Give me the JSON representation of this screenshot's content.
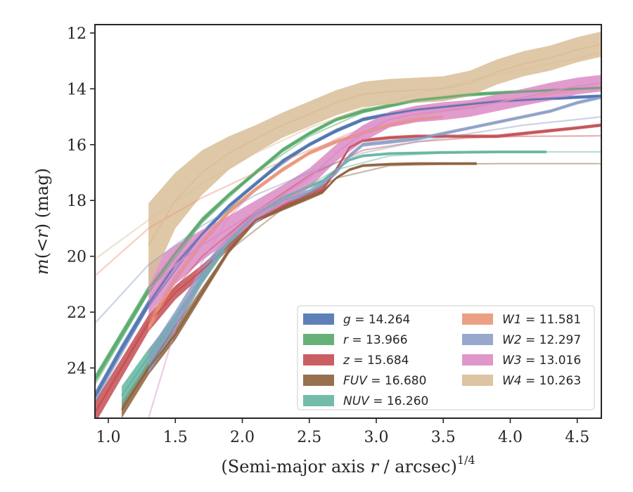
{
  "chart_data": {
    "type": "line",
    "title": "",
    "xlabel": "(Semi-major axis r / arcsec)",
    "xlabel_parts": {
      "pre": "(Semi-major axis ",
      "var": "r",
      "post": " / arcsec)",
      "sup": "1/4"
    },
    "ylabel": "m(< r) (mag)",
    "ylabel_parts": {
      "m": "m",
      "open": "(<",
      "r": "r",
      "close": ") (mag)"
    },
    "xlim": [
      0.9,
      4.68
    ],
    "ylim": [
      25.8,
      11.7
    ],
    "y_inverted": true,
    "xticks": [
      1.0,
      1.5,
      2.0,
      2.5,
      3.0,
      3.5,
      4.0,
      4.5
    ],
    "xtick_labels": [
      "1.0",
      "1.5",
      "2.0",
      "2.5",
      "3.0",
      "3.5",
      "4.0",
      "4.5"
    ],
    "yticks": [
      12,
      14,
      16,
      18,
      20,
      22,
      24
    ],
    "ytick_labels": [
      "12",
      "14",
      "16",
      "18",
      "20",
      "22",
      "24"
    ],
    "grid": false,
    "legend_position": "lower-right",
    "series": [
      {
        "name": "g",
        "label": "g = 14.264",
        "color": "#4c72b0",
        "x": [
          0.9,
          1.1,
          1.3,
          1.5,
          1.7,
          1.9,
          2.1,
          2.3,
          2.5,
          2.7,
          2.9,
          3.1,
          3.3,
          3.5,
          3.7,
          3.9,
          4.1,
          4.3,
          4.5,
          4.68
        ],
        "y": [
          25.0,
          23.3,
          21.7,
          20.3,
          19.2,
          18.2,
          17.4,
          16.6,
          16.0,
          15.5,
          15.1,
          14.9,
          14.75,
          14.65,
          14.55,
          14.45,
          14.4,
          14.35,
          14.3,
          14.264
        ],
        "band": [
          0.15,
          0.15,
          0.15,
          0.12,
          0.1,
          0.08,
          0.08,
          0.08,
          0.07,
          0.07,
          0.07,
          0.06,
          0.06,
          0.06,
          0.06,
          0.06,
          0.06,
          0.06,
          0.06,
          0.06
        ],
        "fit_x": [
          0.9,
          1.3,
          1.7,
          2.1,
          2.5,
          2.9,
          3.3,
          3.7,
          4.1,
          4.5,
          4.68
        ],
        "fit_y": [
          25.2,
          21.8,
          19.2,
          17.4,
          16.0,
          15.1,
          14.75,
          14.55,
          14.4,
          14.3,
          14.264
        ]
      },
      {
        "name": "r",
        "label": "r = 13.966",
        "color": "#55a868",
        "x": [
          0.9,
          1.1,
          1.3,
          1.5,
          1.7,
          1.9,
          2.1,
          2.3,
          2.5,
          2.7,
          2.9,
          3.1,
          3.3,
          3.5,
          3.7,
          3.9,
          4.1,
          4.3,
          4.5,
          4.68
        ],
        "y": [
          24.4,
          22.8,
          21.2,
          19.9,
          18.7,
          17.8,
          17.0,
          16.2,
          15.6,
          15.1,
          14.8,
          14.6,
          14.4,
          14.3,
          14.2,
          14.15,
          14.1,
          14.05,
          14.0,
          13.966
        ],
        "band": [
          0.15,
          0.15,
          0.15,
          0.12,
          0.1,
          0.08,
          0.08,
          0.08,
          0.07,
          0.07,
          0.07,
          0.06,
          0.06,
          0.06,
          0.06,
          0.06,
          0.06,
          0.06,
          0.06,
          0.06
        ],
        "fit_x": [
          0.9,
          1.3,
          1.7,
          2.1,
          2.5,
          2.9,
          3.3,
          3.7,
          4.1,
          4.5,
          4.68
        ],
        "fit_y": [
          24.6,
          21.3,
          18.8,
          17.0,
          15.7,
          14.85,
          14.45,
          14.25,
          14.1,
          14.0,
          13.966
        ]
      },
      {
        "name": "z",
        "label": "z = 15.684",
        "color": "#c44e52",
        "x": [
          0.9,
          1.1,
          1.3,
          1.5,
          1.7,
          1.9,
          2.1,
          2.3,
          2.5,
          2.6,
          2.7,
          2.8,
          2.9,
          3.1,
          3.3,
          3.5,
          3.7,
          3.9,
          4.1,
          4.3,
          4.5,
          4.68
        ],
        "y": [
          25.6,
          24.0,
          22.4,
          21.3,
          20.5,
          19.6,
          18.7,
          18.2,
          17.8,
          17.6,
          16.9,
          16.1,
          15.85,
          15.75,
          15.7,
          15.7,
          15.7,
          15.7,
          15.6,
          15.5,
          15.4,
          15.3
        ],
        "band": [
          0.4,
          0.35,
          0.3,
          0.25,
          0.2,
          0.15,
          0.12,
          0.1,
          0.1,
          0.1,
          0.08,
          0.07,
          0.06,
          0.06,
          0.06,
          0.06,
          0.06,
          0.06,
          0.06,
          0.06,
          0.06,
          0.06
        ],
        "fit_x": [
          0.9,
          1.3,
          1.7,
          2.1,
          2.5,
          2.9,
          3.3,
          3.7,
          4.1,
          4.5,
          4.68
        ],
        "fit_y": [
          25.6,
          22.3,
          20.0,
          18.4,
          17.1,
          16.2,
          15.9,
          15.75,
          15.7,
          15.69,
          15.684
        ]
      },
      {
        "name": "FUV",
        "label": "FUV = 16.680",
        "color": "#8c613c",
        "x": [
          1.1,
          1.3,
          1.5,
          1.7,
          1.9,
          2.1,
          2.3,
          2.5,
          2.6,
          2.7,
          2.8,
          2.9,
          3.1,
          3.3,
          3.5,
          3.75
        ],
        "y": [
          25.5,
          24.0,
          22.8,
          21.3,
          19.8,
          18.7,
          18.3,
          17.9,
          17.7,
          17.2,
          16.9,
          16.75,
          16.7,
          16.68,
          16.68,
          16.68
        ],
        "band": [
          0.3,
          0.25,
          0.2,
          0.15,
          0.1,
          0.08,
          0.07,
          0.07,
          0.06,
          0.05,
          0.05,
          0.05,
          0.05,
          0.05,
          0.05,
          0.05
        ],
        "fit_x": [
          1.1,
          1.5,
          1.9,
          2.3,
          2.7,
          3.1,
          3.5,
          3.9,
          4.3,
          4.68
        ],
        "fit_y": [
          25.5,
          22.5,
          19.8,
          18.3,
          17.2,
          16.75,
          16.7,
          16.68,
          16.68,
          16.68
        ]
      },
      {
        "name": "NUV",
        "label": "NUV = 16.260",
        "color": "#64b5a0",
        "x": [
          1.1,
          1.3,
          1.5,
          1.7,
          1.9,
          2.1,
          2.3,
          2.5,
          2.6,
          2.7,
          2.8,
          2.9,
          3.1,
          3.3,
          3.5,
          3.7,
          3.9,
          4.1,
          4.27
        ],
        "y": [
          25.0,
          23.6,
          22.3,
          20.8,
          19.5,
          18.5,
          17.9,
          17.5,
          17.3,
          16.9,
          16.55,
          16.4,
          16.32,
          16.3,
          16.28,
          16.27,
          16.26,
          16.26,
          16.26
        ],
        "band": [
          0.35,
          0.28,
          0.2,
          0.15,
          0.1,
          0.08,
          0.07,
          0.06,
          0.06,
          0.05,
          0.05,
          0.05,
          0.05,
          0.05,
          0.05,
          0.05,
          0.05,
          0.05,
          0.05
        ],
        "fit_x": [
          1.1,
          1.5,
          1.9,
          2.3,
          2.7,
          3.1,
          3.5,
          3.9,
          4.3,
          4.68
        ],
        "fit_y": [
          25.0,
          22.2,
          19.6,
          18.0,
          16.9,
          16.4,
          16.3,
          16.27,
          16.26,
          16.26
        ]
      },
      {
        "name": "W1",
        "label": "W1 = 11.581",
        "color": "#e99675",
        "x": [
          1.3,
          1.5,
          1.7,
          1.9,
          2.1,
          2.3,
          2.5,
          2.7,
          2.9,
          3.1,
          3.3,
          3.5
        ],
        "y": [
          22.5,
          20.8,
          19.5,
          18.4,
          17.6,
          16.9,
          16.3,
          15.9,
          15.6,
          15.3,
          15.1,
          15.0
        ],
        "band": [
          0.2,
          0.15,
          0.12,
          0.1,
          0.08,
          0.08,
          0.07,
          0.07,
          0.06,
          0.06,
          0.06,
          0.06
        ],
        "fit_x": [
          0.9,
          1.3,
          1.7,
          2.1,
          2.5,
          2.9,
          3.3,
          3.7,
          4.1,
          4.5,
          4.68
        ],
        "fit_y": [
          20.7,
          19.0,
          17.9,
          17.0,
          16.2,
          15.5,
          15.0,
          14.6,
          14.3,
          14.05,
          13.95
        ]
      },
      {
        "name": "W2",
        "label": "W2 = 12.297",
        "color": "#8c9fc6",
        "x": [
          1.3,
          1.5,
          1.7,
          1.9,
          2.1,
          2.3,
          2.5,
          2.6,
          2.7,
          2.8,
          2.9,
          3.1,
          3.3,
          3.5,
          3.7,
          3.9,
          4.1,
          4.3,
          4.5,
          4.68
        ],
        "y": [
          23.8,
          22.3,
          20.7,
          19.4,
          18.5,
          18.0,
          17.7,
          17.4,
          17.0,
          16.4,
          16.0,
          15.9,
          15.8,
          15.6,
          15.4,
          15.2,
          15.0,
          14.8,
          14.5,
          14.3
        ],
        "band": [
          0.4,
          0.35,
          0.3,
          0.2,
          0.15,
          0.12,
          0.1,
          0.1,
          0.08,
          0.08,
          0.07,
          0.07,
          0.06,
          0.06,
          0.06,
          0.06,
          0.06,
          0.06,
          0.06,
          0.06
        ],
        "fit_x": [
          0.9,
          1.3,
          1.7,
          2.1,
          2.5,
          2.9,
          3.3,
          3.7,
          4.1,
          4.5,
          4.68
        ],
        "fit_y": [
          22.4,
          20.3,
          18.9,
          17.8,
          17.0,
          16.3,
          15.9,
          15.6,
          15.3,
          15.1,
          15.0
        ]
      },
      {
        "name": "W3",
        "label": "W3 = 13.016",
        "color": "#dc8bc5",
        "x": [
          1.3,
          1.5,
          1.7,
          1.9,
          2.1,
          2.3,
          2.5,
          2.7,
          2.9,
          3.1,
          3.3,
          3.5,
          3.7,
          3.9,
          4.1,
          4.3,
          4.5,
          4.68
        ],
        "y": [
          21.2,
          20.3,
          19.6,
          19.0,
          18.4,
          17.8,
          17.2,
          16.3,
          15.6,
          15.1,
          14.9,
          14.8,
          14.7,
          14.5,
          14.3,
          14.1,
          13.9,
          13.8
        ],
        "band": [
          0.9,
          0.7,
          0.55,
          0.45,
          0.4,
          0.35,
          0.35,
          0.3,
          0.3,
          0.28,
          0.3,
          0.32,
          0.3,
          0.3,
          0.3,
          0.32,
          0.3,
          0.3
        ],
        "fit_x": [
          1.3,
          1.5,
          1.7,
          1.9,
          2.1,
          2.3,
          2.5,
          2.7,
          2.9,
          3.1,
          3.3,
          3.5,
          3.7,
          3.9,
          4.1,
          4.3,
          4.5,
          4.68
        ],
        "fit_y": [
          25.8,
          22.6,
          20.2,
          18.6,
          17.6,
          16.9,
          16.3,
          15.8,
          15.4,
          15.1,
          14.9,
          14.75,
          14.65,
          14.5,
          14.35,
          14.2,
          14.05,
          14.0
        ]
      },
      {
        "name": "W4",
        "label": "W4 = 10.263",
        "color": "#d9be98",
        "x": [
          1.3,
          1.5,
          1.7,
          1.9,
          2.1,
          2.3,
          2.5,
          2.7,
          2.9,
          3.1,
          3.3,
          3.5,
          3.7,
          3.9,
          4.1,
          4.3,
          4.5,
          4.68
        ],
        "y": [
          19.6,
          18.0,
          17.0,
          16.3,
          15.8,
          15.3,
          14.9,
          14.5,
          14.2,
          14.1,
          14.05,
          14.0,
          13.8,
          13.4,
          13.1,
          12.9,
          12.6,
          12.4
        ],
        "band": [
          1.5,
          1.0,
          0.8,
          0.6,
          0.5,
          0.45,
          0.45,
          0.45,
          0.45,
          0.45,
          0.45,
          0.45,
          0.45,
          0.45,
          0.45,
          0.45,
          0.45,
          0.45
        ],
        "fit_x": [
          0.9,
          1.3,
          1.7,
          2.1,
          2.5,
          2.9,
          3.3,
          3.7,
          4.1,
          4.5,
          4.68
        ],
        "fit_y": [
          20.1,
          18.7,
          17.4,
          16.3,
          15.4,
          14.7,
          14.2,
          13.7,
          13.3,
          12.9,
          12.7
        ]
      }
    ],
    "legend_entries": [
      {
        "var": "g",
        "value": " = 14.264",
        "color": "#4c72b0"
      },
      {
        "var": "r",
        "value": " = 13.966",
        "color": "#55a868"
      },
      {
        "var": "z",
        "value": " = 15.684",
        "color": "#c44e52"
      },
      {
        "var": "FUV",
        "value": " = 16.680",
        "color": "#8c613c"
      },
      {
        "var": "NUV",
        "value": " = 16.260",
        "color": "#64b5a0"
      },
      {
        "var": "W1",
        "value": " = 11.581",
        "color": "#e99675"
      },
      {
        "var": "W2",
        "value": " = 12.297",
        "color": "#8c9fc6"
      },
      {
        "var": "W3",
        "value": " = 13.016",
        "color": "#dc8bc5"
      },
      {
        "var": "W4",
        "value": " = 10.263",
        "color": "#d9be98"
      }
    ]
  }
}
